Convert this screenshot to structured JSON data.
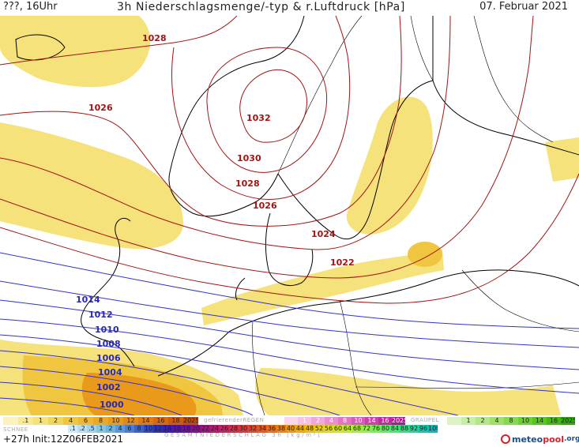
{
  "header": {
    "left": "???, 16Uhr",
    "title": "3h Niederschlagsmenge/-typ & r.Luftdruck [hPa]",
    "date": "07. Februar 2021"
  },
  "map": {
    "isobars_red": [
      "1032",
      "1030",
      "1028",
      "1028",
      "1026",
      "1026",
      "1024",
      "1022"
    ],
    "isobars_blue": [
      "1014",
      "1012",
      "1010",
      "1008",
      "1006",
      "1004",
      "1002",
      "1000"
    ],
    "colors": {
      "rain_light": "#f5e27a",
      "rain_mid": "#f0c640",
      "rain_heavy": "#e99a1a",
      "isobar_high": "#a11414",
      "isobar_low": "#3232c8",
      "coast": "#000000"
    }
  },
  "legend": {
    "rain_ticks": [
      "",
      ".1",
      "1",
      "2",
      "4",
      "6",
      "8",
      "10",
      "12",
      "14",
      "16",
      "18",
      "2025+"
    ],
    "freezing_rain_label": "gefrierenderREGEN",
    "freezing_rain_ticks": [
      "",
      "1",
      "2",
      "4",
      "8",
      "10",
      "14",
      "16",
      "2025+"
    ],
    "graupel_label": "GRAUPEL",
    "graupel_ticks": [
      "",
      "1",
      "2",
      "4",
      "8",
      "10",
      "14",
      "16",
      "2025+"
    ],
    "snow_label": "SCHNEE",
    "snow_ticks": [
      ".1",
      ".2",
      ".5",
      "1",
      "2",
      "4",
      "6",
      "8",
      "10",
      "12",
      "14",
      "16",
      "18",
      "20",
      "22",
      "24",
      "26",
      "28",
      "30",
      "32",
      "34",
      "36",
      "38",
      "40",
      "44",
      "48",
      "52",
      "56",
      "60",
      "64",
      "68",
      "72",
      "76",
      "80",
      "84",
      "88",
      "92",
      "96",
      "100"
    ]
  },
  "footer": {
    "run": "+27h Init:12Z06FEB2021",
    "axis": "GESAMTNIEDERSCHLAG 3h [kg/m²]"
  },
  "logo": {
    "a": "meteo",
    "b": "pool",
    "c": ".org"
  }
}
